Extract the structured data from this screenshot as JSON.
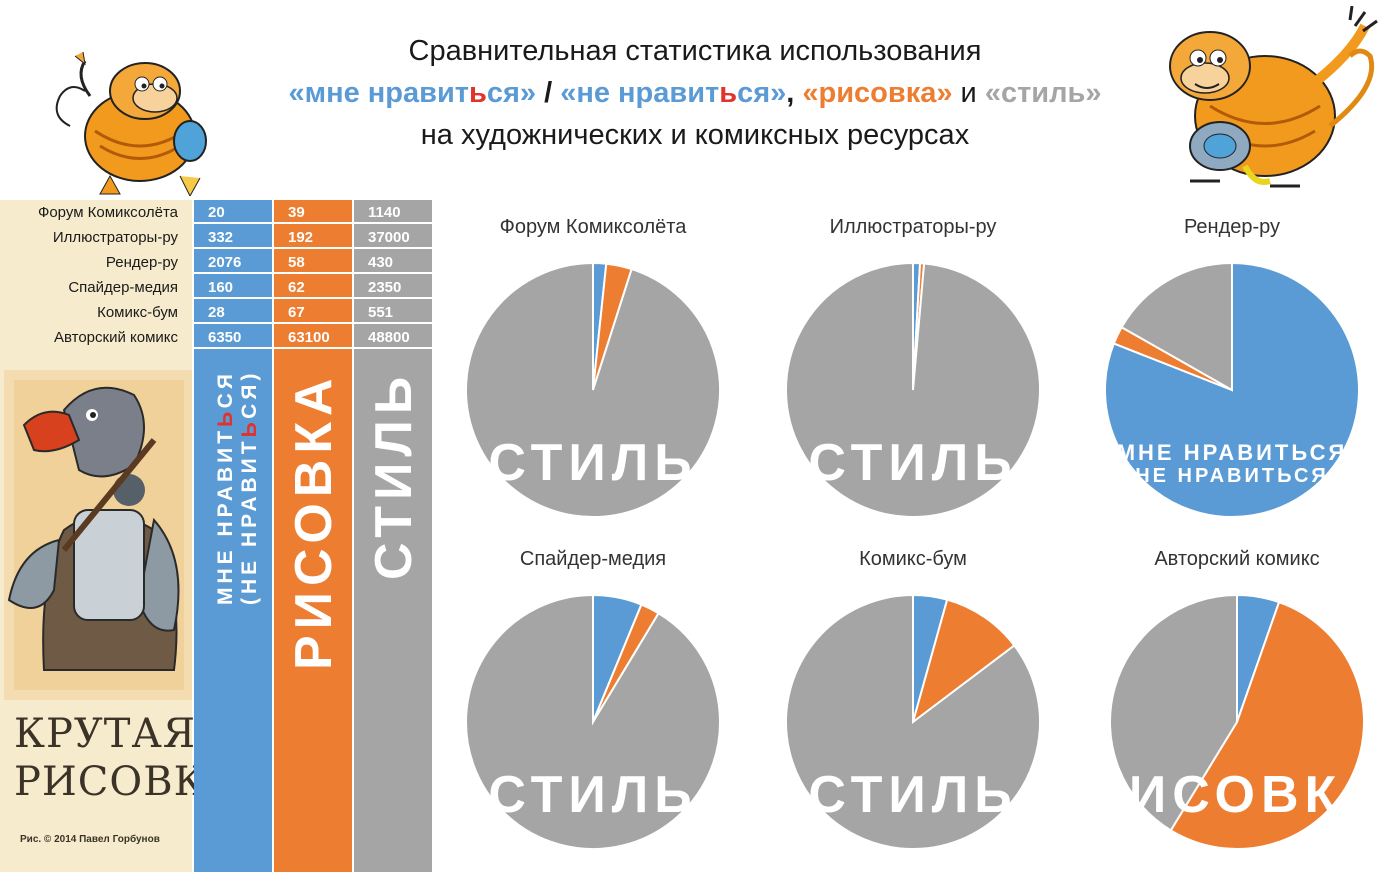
{
  "title": {
    "line1": "Сравнительная статистика использования",
    "line2": {
      "q1a": "«мне нравит",
      "q1b": "ь",
      "q1c": "ся»",
      "sep1": " / ",
      "q2a": "«не нравит",
      "q2b": "ь",
      "q2c": "ся»",
      "sep2": ", ",
      "q3": "«рисовка»",
      "sep3": " и ",
      "q4": "«стиль»"
    },
    "line3": "на художнических и комиксных ресурсах"
  },
  "columns": {
    "like_a": "МНЕ НРАВИТ",
    "like_b": "Ь",
    "like_c": "СЯ",
    "dislike_a": "(НЕ НРАВИТ",
    "dislike_b": "Ь",
    "dislike_c": "СЯ)",
    "drawing": "РИСОВКА",
    "style": "СТИЛЬ"
  },
  "brand": {
    "line1": "КРУТАЯ",
    "line2": "РИСОВКА"
  },
  "credit": "Рис. © 2014 Павел Горбунов",
  "colors": {
    "like": "#5b9bd5",
    "drawing": "#ed7d31",
    "style": "#a5a5a5",
    "accent": "#e0332b"
  },
  "chart_data": {
    "type": "pie",
    "series_names": [
      "мне нравиться / не нравиться",
      "рисовка",
      "стиль"
    ],
    "table": [
      {
        "site": "Форум Комиксолёта",
        "values": [
          "20",
          "39",
          "1140"
        ]
      },
      {
        "site": "Иллюстраторы-ру",
        "values": [
          "332",
          "192",
          "37000"
        ]
      },
      {
        "site": "Рендер-ру",
        "values": [
          "2076",
          "58",
          "430"
        ]
      },
      {
        "site": "Спайдер-медия",
        "values": [
          "160",
          "62",
          "2350"
        ]
      },
      {
        "site": "Комикс-бум",
        "values": [
          "28",
          "67",
          "551"
        ]
      },
      {
        "site": "Авторский комикс",
        "values": [
          "6350",
          "63100",
          "48800"
        ]
      }
    ],
    "pies": [
      {
        "title": "Форум Комиксолёта",
        "values": [
          20,
          39,
          1140
        ],
        "label": "СТИЛЬ",
        "label2": ""
      },
      {
        "title": "Иллюстраторы-ру",
        "values": [
          332,
          192,
          37000
        ],
        "label": "СТИЛЬ",
        "label2": ""
      },
      {
        "title": "Рендер-ру",
        "values": [
          2076,
          58,
          430
        ],
        "label": "МНЕ НРАВИТЬСЯ",
        "label2": "НЕ НРАВИТЬСЯ"
      },
      {
        "title": "Спайдер-медия",
        "values": [
          160,
          62,
          2350
        ],
        "label": "СТИЛЬ",
        "label2": ""
      },
      {
        "title": "Комикс-бум",
        "values": [
          28,
          67,
          551
        ],
        "label": "СТИЛЬ",
        "label2": ""
      },
      {
        "title": "Авторский комикс",
        "values": [
          6350,
          63100,
          48800
        ],
        "label": "РИСОВКА",
        "label2": ""
      }
    ]
  }
}
